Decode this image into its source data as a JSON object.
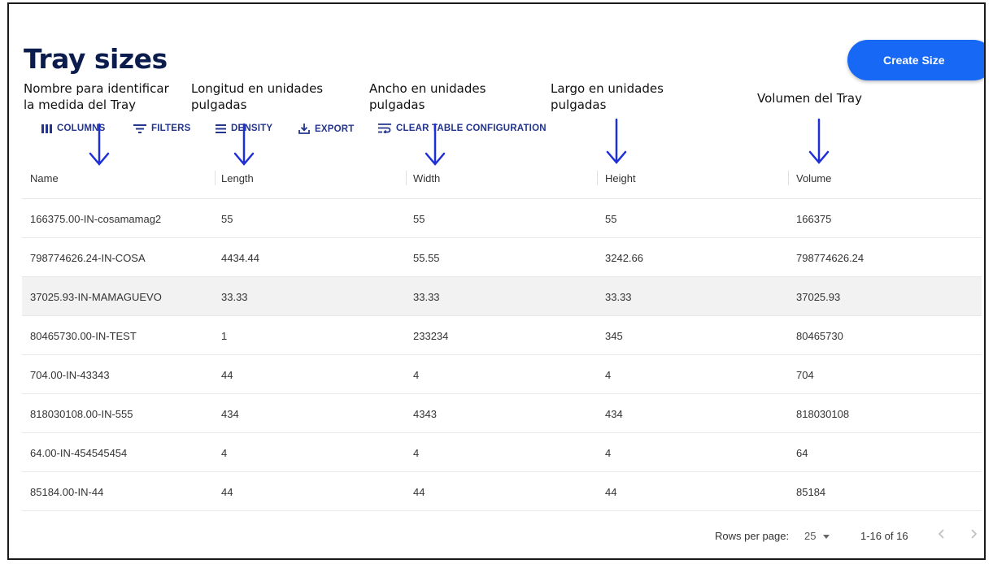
{
  "header": {
    "title": "Tray sizes",
    "create_button": "Create Size"
  },
  "annotations": [
    {
      "line1": "Nombre para identificar",
      "line2": "la medida del Tray"
    },
    {
      "line1": "Longitud en unidades",
      "line2": "pulgadas"
    },
    {
      "line1": "Ancho en unidades",
      "line2": "pulgadas"
    },
    {
      "line1": "Largo  en unidades",
      "line2": "pulgadas"
    },
    {
      "line1": "Volumen del Tray",
      "line2": ""
    }
  ],
  "toolbar": {
    "columns": "COLUMNS",
    "filters": "FILTERS",
    "density": "DENSITY",
    "export": "EXPORT",
    "clear": "CLEAR TABLE CONFIGURATION"
  },
  "table": {
    "columns": [
      "Name",
      "Length",
      "Width",
      "Height",
      "Volume"
    ],
    "rows": [
      [
        "166375.00-IN-cosamamag2",
        "55",
        "55",
        "55",
        "166375"
      ],
      [
        "798774626.24-IN-COSA",
        "4434.44",
        "55.55",
        "3242.66",
        "798774626.24"
      ],
      [
        "37025.93-IN-MAMAGUEVO",
        "33.33",
        "33.33",
        "33.33",
        "37025.93"
      ],
      [
        "80465730.00-IN-TEST",
        "1",
        "233234",
        "345",
        "80465730"
      ],
      [
        "704.00-IN-43343",
        "44",
        "4",
        "4",
        "704"
      ],
      [
        "818030108.00-IN-555",
        "434",
        "4343",
        "434",
        "818030108"
      ],
      [
        "64.00-IN-454545454",
        "4",
        "4",
        "4",
        "64"
      ],
      [
        "85184.00-IN-44",
        "44",
        "44",
        "44",
        "85184"
      ]
    ]
  },
  "pagination": {
    "rows_per_page_label": "Rows per page:",
    "rows_per_page_value": "25",
    "range": "1-16 of 16"
  },
  "colors": {
    "accent": "#1769f5",
    "title": "#0c1c4d",
    "toolbar": "#23358c",
    "annotation_arrow": "#1f2fd6"
  }
}
